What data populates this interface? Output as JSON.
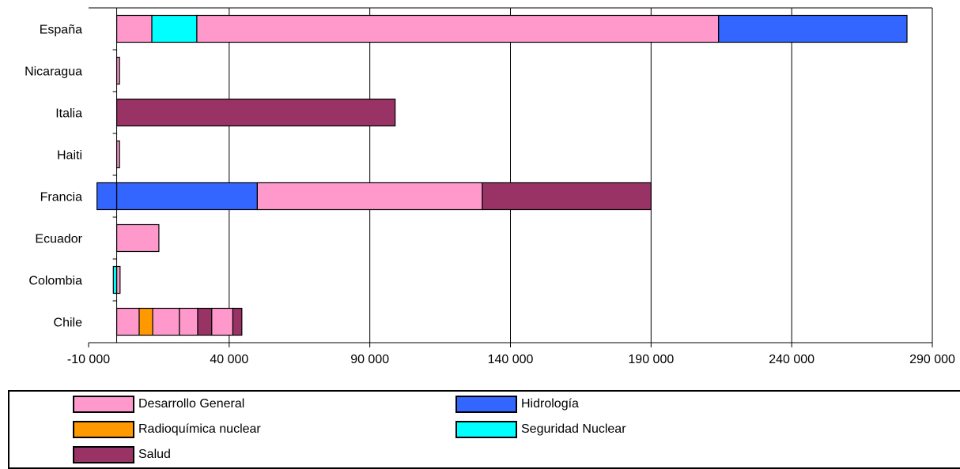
{
  "chart_data": {
    "type": "bar",
    "orientation": "horizontal",
    "stacked": true,
    "title": "",
    "xlabel": "",
    "ylabel": "",
    "xlim": [
      -10000,
      290000
    ],
    "x_ticks": [
      -10000,
      40000,
      90000,
      140000,
      190000,
      240000,
      290000
    ],
    "x_tick_labels": [
      "-10 000",
      "40 000",
      "90 000",
      "140 000",
      "190 000",
      "240 000",
      "290 000"
    ],
    "vertical_grid": true,
    "legend_position": "bottom",
    "categories": [
      "España",
      "Nicaragua",
      "Italia",
      "Haiti",
      "Francia",
      "Ecuador",
      "Colombia",
      "Chile"
    ],
    "series_names": {
      "desarrollo": "Desarrollo General",
      "hidrologia": "Hidrología",
      "radioquimica": "Radioquímica nuclear",
      "seguridad": "Seguridad Nuclear",
      "salud": "Salud"
    },
    "colors": {
      "desarrollo": "#FF99CC",
      "hidrologia": "#3366FF",
      "radioquimica": "#FF9900",
      "seguridad": "#00FFFF",
      "salud": "#993366"
    },
    "bars": [
      {
        "category": "España",
        "segments": [
          {
            "series": "desarrollo",
            "value": 12500
          },
          {
            "series": "seguridad",
            "value": 16000
          },
          {
            "series": "desarrollo",
            "value": 185500
          },
          {
            "series": "hidrologia",
            "value": 67000
          }
        ]
      },
      {
        "category": "Nicaragua",
        "segments": [
          {
            "series": "desarrollo",
            "value": 1000
          }
        ]
      },
      {
        "category": "Italia",
        "segments": [
          {
            "series": "salud",
            "value": 99000
          }
        ]
      },
      {
        "category": "Haiti",
        "segments": [
          {
            "series": "desarrollo",
            "value": 1000
          }
        ]
      },
      {
        "category": "Francia",
        "negative": [
          {
            "series": "hidrologia",
            "value": -7000
          }
        ],
        "segments": [
          {
            "series": "hidrologia",
            "value": 50000
          },
          {
            "series": "desarrollo",
            "value": 80000
          },
          {
            "series": "salud",
            "value": 60000
          }
        ]
      },
      {
        "category": "Ecuador",
        "segments": [
          {
            "series": "desarrollo",
            "value": 15000
          }
        ]
      },
      {
        "category": "Colombia",
        "negative": [
          {
            "series": "seguridad",
            "value": -1200
          }
        ],
        "segments": [
          {
            "series": "desarrollo",
            "value": 1200
          }
        ]
      },
      {
        "category": "Chile",
        "segments": [
          {
            "series": "desarrollo",
            "value": 8000
          },
          {
            "series": "radioquimica",
            "value": 4800
          },
          {
            "series": "desarrollo",
            "value": 9500
          },
          {
            "series": "desarrollo",
            "value": 6500
          },
          {
            "series": "salud",
            "value": 5000
          },
          {
            "series": "desarrollo",
            "value": 7500
          },
          {
            "series": "salud",
            "value": 3200
          }
        ]
      }
    ]
  },
  "legend": {
    "items": [
      {
        "key": "desarrollo",
        "label": "Desarrollo General"
      },
      {
        "key": "hidrologia",
        "label": "Hidrología"
      },
      {
        "key": "radioquimica",
        "label": "Radioquímica nuclear"
      },
      {
        "key": "seguridad",
        "label": "Seguridad Nuclear"
      },
      {
        "key": "salud",
        "label": "Salud"
      }
    ]
  }
}
